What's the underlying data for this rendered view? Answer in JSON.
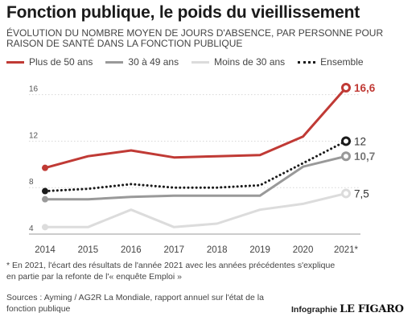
{
  "header": {
    "title": "Fonction publique, le poids du vieillissement",
    "subtitle": "Évolution du nombre moyen de jours d'absence, par personne pour raison de santé dans la fonction publique"
  },
  "legend": {
    "items": [
      {
        "label": "Plus de 50 ans",
        "color": "#c03a35",
        "style": "solid"
      },
      {
        "label": "30 à 49 ans",
        "color": "#999999",
        "style": "solid"
      },
      {
        "label": "Moins de 30 ans",
        "color": "#dcdcdc",
        "style": "solid"
      },
      {
        "label": "Ensemble",
        "color": "#1a1a1a",
        "style": "dotted"
      }
    ]
  },
  "chart_data": {
    "type": "line",
    "x": [
      "2014",
      "2015",
      "2016",
      "2017",
      "2018",
      "2019",
      "2020",
      "2021*"
    ],
    "y_ticks": [
      4,
      8,
      12,
      16
    ],
    "ylim": [
      4,
      17.5
    ],
    "grid": true,
    "xlabel": "",
    "ylabel": "",
    "series": [
      {
        "name": "Moins de 30 ans",
        "color": "#dcdcdc",
        "style": "solid",
        "values": [
          4.6,
          4.6,
          6.1,
          4.6,
          4.9,
          6.1,
          6.6,
          7.5
        ],
        "end_label": "7,5",
        "end_label_color": "#333333",
        "end_label_bold": false
      },
      {
        "name": "30 à 49 ans",
        "color": "#999999",
        "style": "solid",
        "values": [
          7.0,
          7.0,
          7.2,
          7.3,
          7.3,
          7.3,
          9.8,
          10.7
        ],
        "end_label": "10,7",
        "end_label_color": "#777777",
        "end_label_bold": true
      },
      {
        "name": "Ensemble",
        "color": "#1a1a1a",
        "style": "dotted",
        "values": [
          7.7,
          7.9,
          8.3,
          8.0,
          8.0,
          8.2,
          10.1,
          12.0
        ],
        "end_label": "12",
        "end_label_color": "#333333",
        "end_label_bold": false
      },
      {
        "name": "Plus de 50 ans",
        "color": "#c03a35",
        "style": "solid",
        "values": [
          9.7,
          10.7,
          11.2,
          10.6,
          10.7,
          10.8,
          12.4,
          16.6
        ],
        "end_label": "16,6",
        "end_label_color": "#c03a35",
        "end_label_bold": true
      }
    ]
  },
  "footer": {
    "note": "* En 2021, l'écart des résultats de l'année 2021 avec les années précédentes s'explique en partie par la refonte de l'« enquête Emploi »",
    "sources": "Sources : Ayming / AG2R La Mondiale, rapport annuel sur l'état de la fonction publique",
    "credit_label": "Infographie",
    "credit_logo": "LE FIGARO"
  }
}
